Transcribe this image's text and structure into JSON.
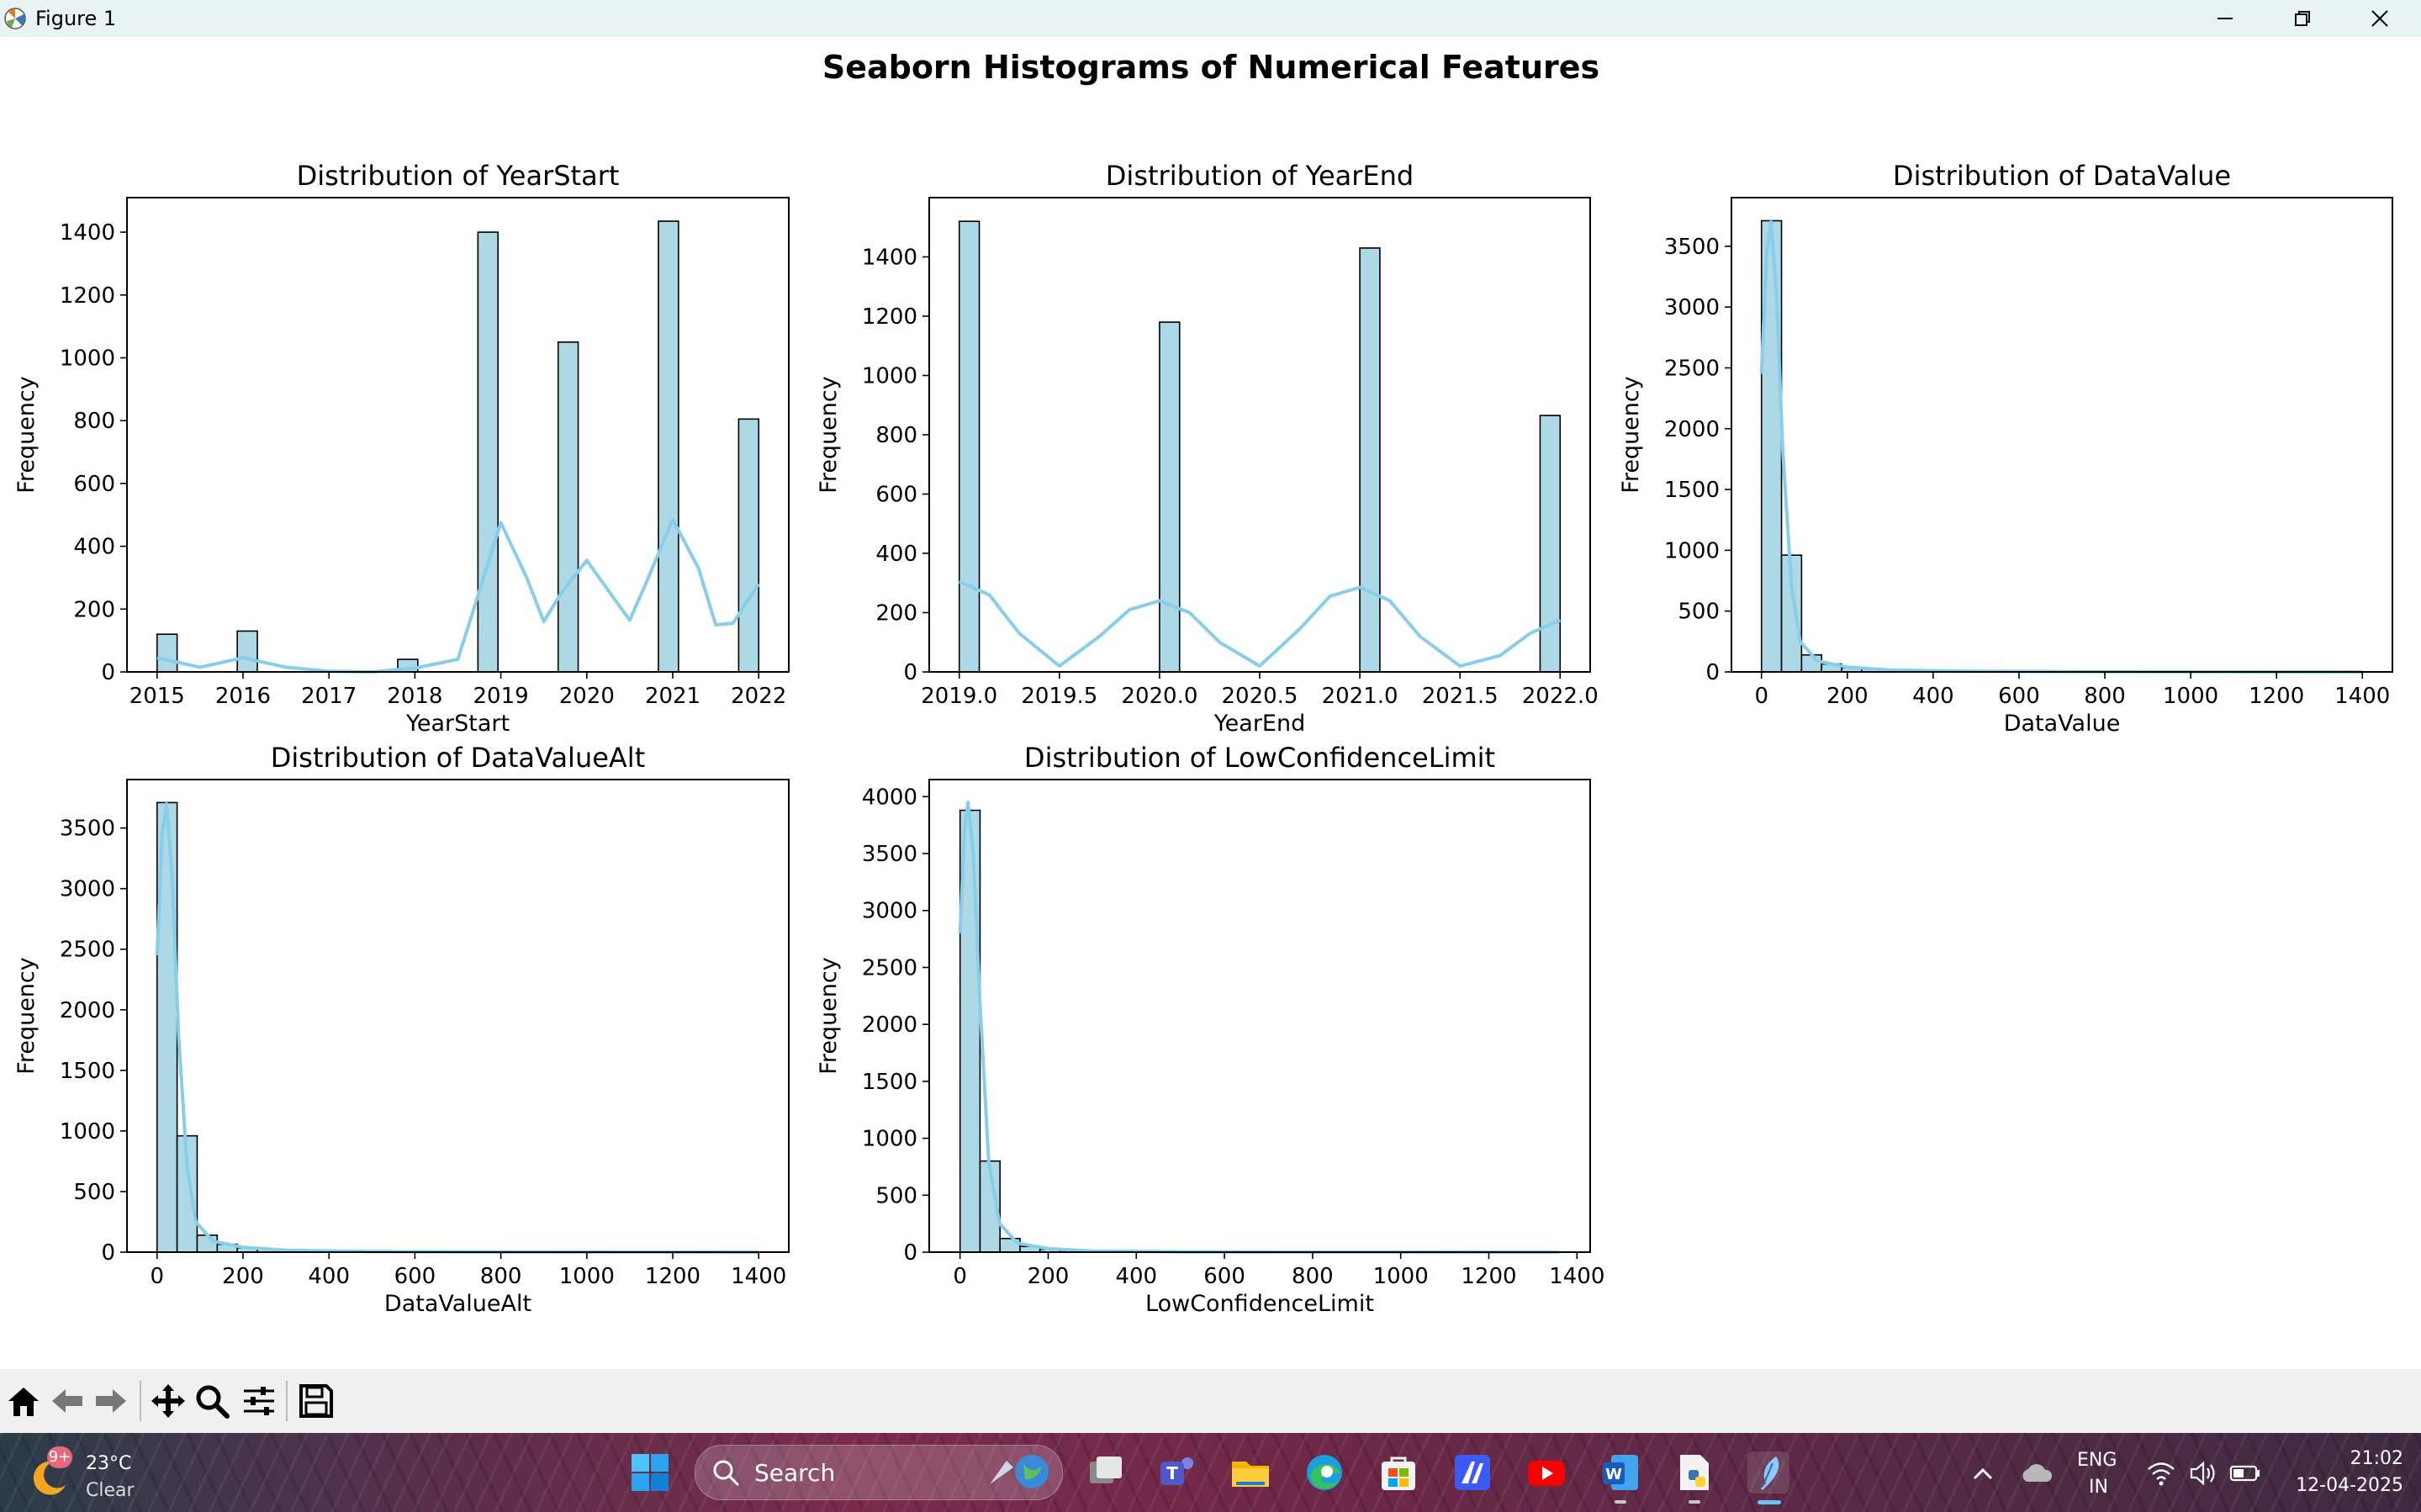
{
  "window": {
    "title": "Figure 1"
  },
  "figure": {
    "suptitle": "Seaborn Histograms of Numerical Features"
  },
  "colors": {
    "bar_fill": "#add8e6",
    "kde_line": "#87ceeb",
    "edge": "#000000",
    "toolbar_bg": "#f0f0f0",
    "titlebar_bg": "#e8f4f4"
  },
  "chart_data": [
    {
      "type": "bar",
      "title": "Distribution of YearStart",
      "xlabel": "YearStart",
      "ylabel": "Frequency",
      "xlim": [
        2014.65,
        2022.35
      ],
      "ylim": [
        0,
        1510
      ],
      "xticks": [
        2015,
        2016,
        2017,
        2018,
        2019,
        2020,
        2021,
        2022
      ],
      "xtick_labels": [
        "2015",
        "2016",
        "2017",
        "2018",
        "2019",
        "2020",
        "2021",
        "2022"
      ],
      "yticks": [
        0,
        200,
        400,
        600,
        800,
        1000,
        1200,
        1400
      ],
      "ytick_labels": [
        "0",
        "200",
        "400",
        "600",
        "800",
        "1000",
        "1200",
        "1400"
      ],
      "bins": {
        "start": 2015,
        "end": 2022,
        "values": [
          120,
          0,
          0,
          0,
          130,
          0,
          0,
          0,
          0,
          0,
          0,
          0,
          40,
          0,
          0,
          0,
          1400,
          0,
          0,
          0,
          1050,
          0,
          0,
          0,
          0,
          1435,
          0,
          0,
          0,
          805
        ]
      },
      "kde": [
        [
          2015,
          45
        ],
        [
          2015.5,
          15
        ],
        [
          2016,
          45
        ],
        [
          2016.5,
          15
        ],
        [
          2017,
          2
        ],
        [
          2017.5,
          0
        ],
        [
          2018,
          12
        ],
        [
          2018.5,
          40
        ],
        [
          2019,
          475
        ],
        [
          2019.3,
          300
        ],
        [
          2019.5,
          160
        ],
        [
          2019.7,
          250
        ],
        [
          2020,
          355
        ],
        [
          2020.3,
          240
        ],
        [
          2020.5,
          165
        ],
        [
          2020.7,
          290
        ],
        [
          2021,
          485
        ],
        [
          2021.3,
          330
        ],
        [
          2021.5,
          150
        ],
        [
          2021.7,
          155
        ],
        [
          2022,
          280
        ]
      ]
    },
    {
      "type": "bar",
      "title": "Distribution of YearEnd",
      "xlabel": "YearEnd",
      "ylabel": "Frequency",
      "xlim": [
        2018.85,
        2022.15
      ],
      "ylim": [
        0,
        1600
      ],
      "xticks": [
        2019.0,
        2019.5,
        2020.0,
        2020.5,
        2021.0,
        2021.5,
        2022.0
      ],
      "xtick_labels": [
        "2019.0",
        "2019.5",
        "2020.0",
        "2020.5",
        "2021.0",
        "2021.5",
        "2022.0"
      ],
      "yticks": [
        0,
        200,
        400,
        600,
        800,
        1000,
        1200,
        1400
      ],
      "ytick_labels": [
        "0",
        "200",
        "400",
        "600",
        "800",
        "1000",
        "1200",
        "1400"
      ],
      "bins": {
        "start": 2019,
        "end": 2022,
        "values": [
          1520,
          0,
          0,
          0,
          0,
          0,
          0,
          0,
          0,
          0,
          1180,
          0,
          0,
          0,
          0,
          0,
          0,
          0,
          0,
          0,
          1430,
          0,
          0,
          0,
          0,
          0,
          0,
          0,
          0,
          865
        ]
      },
      "kde": [
        [
          2019,
          305
        ],
        [
          2019.15,
          260
        ],
        [
          2019.3,
          130
        ],
        [
          2019.5,
          20
        ],
        [
          2019.7,
          120
        ],
        [
          2019.85,
          210
        ],
        [
          2020,
          240
        ],
        [
          2020.15,
          200
        ],
        [
          2020.3,
          100
        ],
        [
          2020.5,
          20
        ],
        [
          2020.7,
          145
        ],
        [
          2020.85,
          255
        ],
        [
          2021,
          285
        ],
        [
          2021.15,
          240
        ],
        [
          2021.3,
          120
        ],
        [
          2021.5,
          20
        ],
        [
          2021.7,
          55
        ],
        [
          2021.85,
          130
        ],
        [
          2022,
          175
        ]
      ]
    },
    {
      "type": "bar",
      "title": "Distribution of DataValue",
      "xlabel": "DataValue",
      "ylabel": "Frequency",
      "xlim": [
        -70,
        1470
      ],
      "ylim": [
        0,
        3900
      ],
      "xticks": [
        0,
        200,
        400,
        600,
        800,
        1000,
        1200,
        1400
      ],
      "xtick_labels": [
        "0",
        "200",
        "400",
        "600",
        "800",
        "1000",
        "1200",
        "1400"
      ],
      "yticks": [
        0,
        500,
        1000,
        1500,
        2000,
        2500,
        3000,
        3500
      ],
      "ytick_labels": [
        "0",
        "500",
        "1000",
        "1500",
        "2000",
        "2500",
        "3000",
        "3500"
      ],
      "bins": {
        "start": 0,
        "end": 1400,
        "values": [
          3710,
          960,
          140,
          65,
          35,
          25,
          10,
          5,
          4,
          3,
          2,
          2,
          1,
          1,
          1,
          1,
          0,
          0,
          0,
          0,
          0,
          0,
          0,
          0,
          0,
          0,
          0,
          0,
          0,
          1
        ]
      },
      "kde": [
        [
          0,
          2450
        ],
        [
          12,
          3450
        ],
        [
          22,
          3700
        ],
        [
          35,
          3100
        ],
        [
          50,
          1800
        ],
        [
          70,
          700
        ],
        [
          90,
          250
        ],
        [
          130,
          90
        ],
        [
          200,
          40
        ],
        [
          300,
          15
        ],
        [
          500,
          5
        ],
        [
          800,
          2
        ],
        [
          1400,
          0
        ]
      ]
    },
    {
      "type": "bar",
      "title": "Distribution of DataValueAlt",
      "xlabel": "DataValueAlt",
      "ylabel": "Frequency",
      "xlim": [
        -70,
        1470
      ],
      "ylim": [
        0,
        3900
      ],
      "xticks": [
        0,
        200,
        400,
        600,
        800,
        1000,
        1200,
        1400
      ],
      "xtick_labels": [
        "0",
        "200",
        "400",
        "600",
        "800",
        "1000",
        "1200",
        "1400"
      ],
      "yticks": [
        0,
        500,
        1000,
        1500,
        2000,
        2500,
        3000,
        3500
      ],
      "ytick_labels": [
        "0",
        "500",
        "1000",
        "1500",
        "2000",
        "2500",
        "3000",
        "3500"
      ],
      "bins": {
        "start": 0,
        "end": 1400,
        "values": [
          3710,
          960,
          140,
          65,
          35,
          25,
          10,
          5,
          4,
          3,
          2,
          2,
          1,
          1,
          1,
          1,
          0,
          0,
          0,
          0,
          0,
          0,
          0,
          0,
          0,
          0,
          0,
          0,
          0,
          1
        ]
      },
      "kde": [
        [
          0,
          2450
        ],
        [
          12,
          3450
        ],
        [
          22,
          3700
        ],
        [
          35,
          3100
        ],
        [
          50,
          1800
        ],
        [
          70,
          700
        ],
        [
          90,
          250
        ],
        [
          130,
          90
        ],
        [
          200,
          40
        ],
        [
          300,
          15
        ],
        [
          500,
          5
        ],
        [
          800,
          2
        ],
        [
          1400,
          0
        ]
      ]
    },
    {
      "type": "bar",
      "title": "Distribution of LowConfidenceLimit",
      "xlabel": "LowConfidenceLimit",
      "ylabel": "Frequency",
      "xlim": [
        -70,
        1430
      ],
      "ylim": [
        0,
        4150
      ],
      "xticks": [
        0,
        200,
        400,
        600,
        800,
        1000,
        1200,
        1400
      ],
      "xtick_labels": [
        "0",
        "200",
        "400",
        "600",
        "800",
        "1000",
        "1200",
        "1400"
      ],
      "yticks": [
        0,
        500,
        1000,
        1500,
        2000,
        2500,
        3000,
        3500,
        4000
      ],
      "ytick_labels": [
        "0",
        "500",
        "1000",
        "1500",
        "2000",
        "2500",
        "3000",
        "3500",
        "4000"
      ],
      "bins": {
        "start": 0,
        "end": 1360,
        "values": [
          3880,
          800,
          120,
          50,
          25,
          15,
          8,
          5,
          4,
          3,
          2,
          2,
          1,
          1,
          1,
          0,
          0,
          0,
          0,
          0,
          0,
          0,
          0,
          0,
          0,
          0,
          0,
          0,
          0,
          1
        ]
      },
      "kde": [
        [
          0,
          2800
        ],
        [
          10,
          3700
        ],
        [
          18,
          3950
        ],
        [
          30,
          3500
        ],
        [
          45,
          2200
        ],
        [
          65,
          800
        ],
        [
          90,
          250
        ],
        [
          130,
          80
        ],
        [
          200,
          30
        ],
        [
          300,
          10
        ],
        [
          500,
          3
        ],
        [
          800,
          1
        ],
        [
          1360,
          0
        ]
      ]
    }
  ],
  "toolbar": {
    "icons": [
      "home-icon",
      "back-arrow-icon",
      "forward-arrow-icon",
      "pan-icon",
      "zoom-icon",
      "configure-icon",
      "save-icon"
    ]
  },
  "taskbar": {
    "weather_badge": "9+",
    "weather_temp": "23°C",
    "weather_cond": "Clear",
    "search_placeholder": "Search",
    "lang_top": "ENG",
    "lang_bottom": "IN",
    "time": "21:02",
    "date": "12-04-2025"
  }
}
